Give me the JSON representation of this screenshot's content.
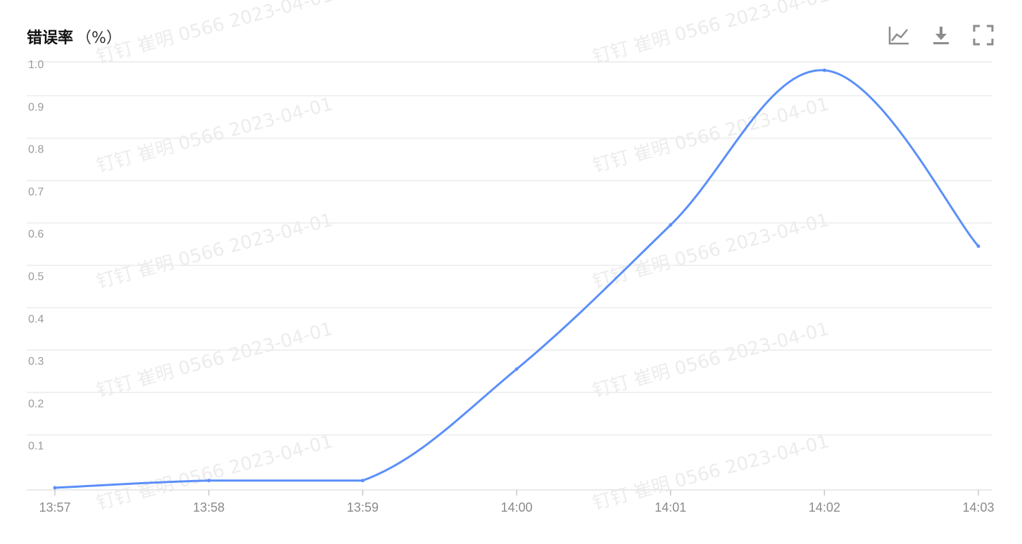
{
  "header": {
    "title": "错误率",
    "unit": "（%）",
    "tools": [
      {
        "name": "line-chart-icon",
        "label": "line chart"
      },
      {
        "name": "download-icon",
        "label": "download"
      },
      {
        "name": "fullscreen-icon",
        "label": "fullscreen"
      }
    ]
  },
  "watermark": "钉钉 崔明 0566 2023-04-01",
  "chart_data": {
    "type": "line",
    "title": "错误率（%）",
    "xlabel": "",
    "ylabel": "",
    "categories": [
      "13:57",
      "13:58",
      "13:59",
      "14:00",
      "14:01",
      "14:02",
      "14:03"
    ],
    "yticks": [
      "0.1",
      "0.2",
      "0.3",
      "0.4",
      "0.5",
      "0.6",
      "0.7",
      "0.8",
      "0.9",
      "1.0"
    ],
    "ylim": [
      0,
      1.0
    ],
    "grid": true,
    "smooth": true,
    "series": [
      {
        "values": [
          0.005,
          0.022,
          0.022,
          0.285,
          0.625,
          0.99,
          0.575
        ],
        "color": "#5b8ff9"
      }
    ]
  }
}
